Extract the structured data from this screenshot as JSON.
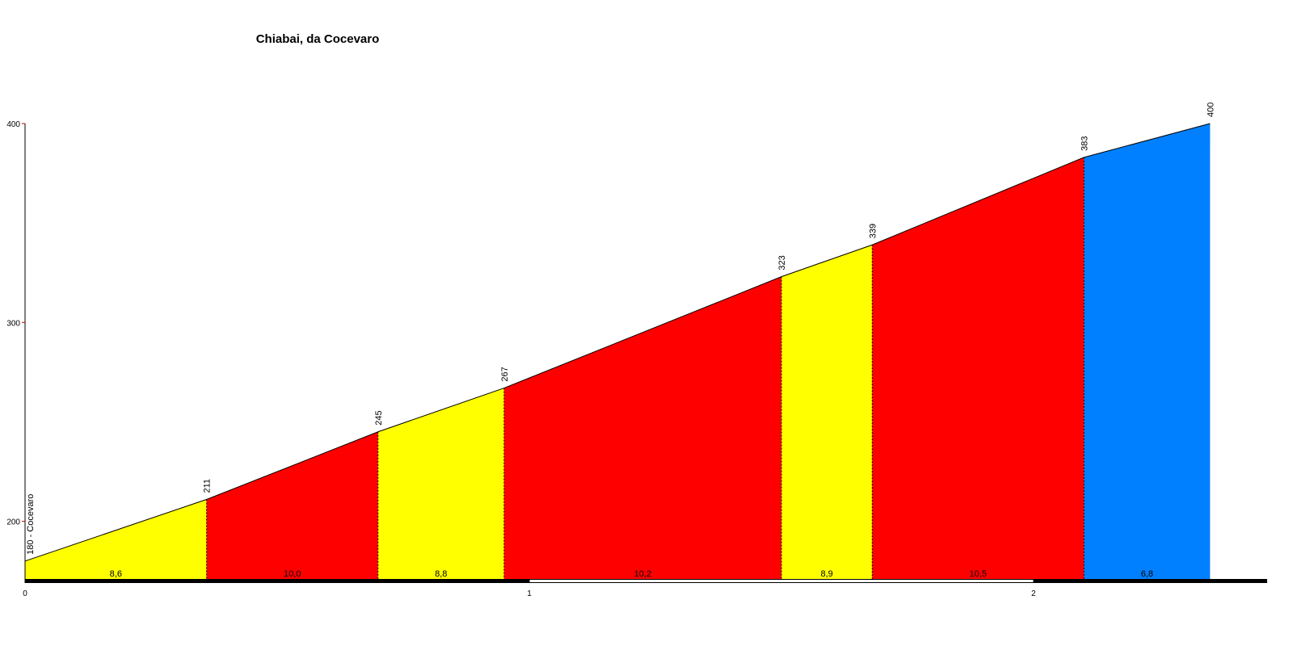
{
  "chart_data": {
    "type": "profile",
    "title": "Chiabai, da Cocevaro",
    "x": [
      0,
      0.36,
      0.7,
      0.95,
      1.5,
      1.68,
      2.1,
      2.35
    ],
    "values": [
      180,
      211,
      245,
      267,
      323,
      339,
      383,
      400
    ],
    "value_labels": [
      "180 - Cocevaro",
      "211",
      "245",
      "267",
      "323",
      "339",
      "383",
      "400"
    ],
    "segments": {
      "values": [
        8.6,
        10.0,
        8.8,
        10.2,
        8.9,
        10.5,
        6.8
      ],
      "value_labels": [
        "8,6",
        "10,0",
        "8,8",
        "10,2",
        "8,9",
        "10,5",
        "6,8"
      ],
      "colors": [
        "#ffff00",
        "#ff0000",
        "#ffff00",
        "#ff0000",
        "#ffff00",
        "#ff0000",
        "#0080ff"
      ]
    },
    "xlim": [
      0,
      2.46
    ],
    "ylim": [
      171,
      400
    ],
    "xticks": [
      0,
      1,
      2
    ],
    "yticks": [
      200,
      300,
      400
    ]
  }
}
